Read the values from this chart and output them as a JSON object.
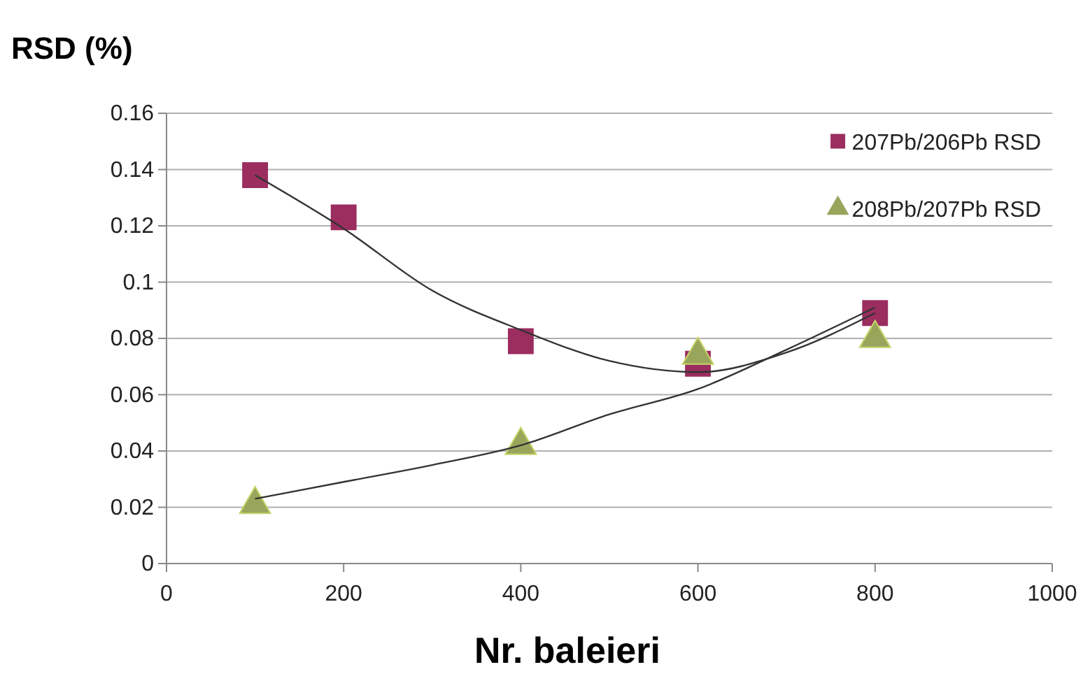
{
  "chart_data": {
    "type": "scatter",
    "ylabel": "RSD (%)",
    "xlabel": "Nr. baleieri",
    "xlim": [
      0,
      1000
    ],
    "xticks": [
      0,
      200,
      400,
      600,
      800,
      1000
    ],
    "ylim": [
      0,
      0.16
    ],
    "yticks": [
      0,
      0.02,
      0.04,
      0.06,
      0.08,
      0.1,
      0.12,
      0.14,
      0.16
    ],
    "grid": "y",
    "legend": "top right",
    "x": [
      100,
      200,
      400,
      600,
      800
    ],
    "series": [
      {
        "type": "line",
        "color": "#333333",
        "marker": "none",
        "x": [
          100,
          200,
          300,
          400,
          500,
          600,
          700,
          800
        ],
        "values": [
          0.138,
          0.119,
          0.097,
          0.083,
          0.072,
          0.068,
          0.075,
          0.089
        ]
      },
      {
        "type": "line",
        "color": "#333333",
        "marker": "none",
        "x": [
          100,
          200,
          300,
          400,
          500,
          600,
          700,
          800
        ],
        "values": [
          0.023,
          0.029,
          0.035,
          0.042,
          0.053,
          0.062,
          0.076,
          0.091
        ]
      },
      {
        "name": "207Pb/206Pb RSD",
        "color": "#9b2d5f",
        "marker": "square",
        "values": [
          0.138,
          0.123,
          0.079,
          0.071,
          0.089
        ]
      },
      {
        "name": "208Pb/207Pb RSD",
        "color": "#9aa55c",
        "marker": "triangle",
        "x": [
          100,
          400,
          600,
          800
        ],
        "values": [
          0.021,
          0.042,
          0.074,
          0.08
        ]
      }
    ]
  }
}
